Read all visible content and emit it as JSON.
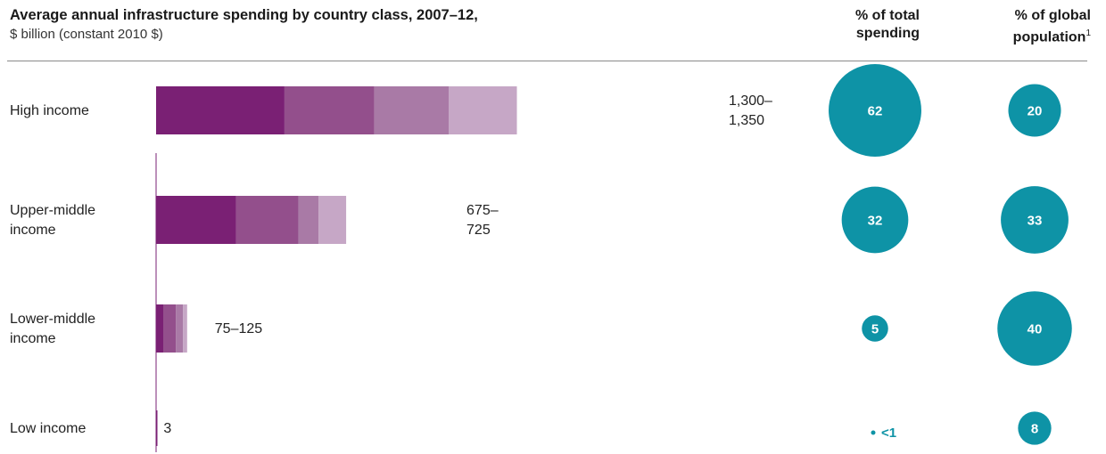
{
  "chart_data": {
    "type": "bar",
    "title": "Average annual infrastructure spending by country class, 2007–12,",
    "subtitle": "$ billion (constant 2010 $)",
    "categories": [
      [
        "High income"
      ],
      [
        "Upper-middle",
        "income"
      ],
      [
        "Lower-middle",
        "income"
      ],
      [
        "Low income"
      ]
    ],
    "segments": [
      [
        306,
        214,
        178,
        162
      ],
      [
        191,
        148,
        48,
        66
      ],
      [
        17,
        30,
        17,
        10
      ],
      [
        3
      ]
    ],
    "segment_colors": [
      "#7a2074",
      "#934f8c",
      "#a97aa6",
      "#c6a7c6"
    ],
    "totals": [
      1350,
      725,
      125,
      3
    ],
    "value_labels": [
      [
        "1,300–",
        "1,350"
      ],
      [
        "675–",
        "725"
      ],
      [
        "75–125"
      ],
      [
        "3"
      ]
    ],
    "spending_share": {
      "header": [
        "% of total",
        "spending"
      ],
      "labels": [
        "62",
        "32",
        "5",
        "<1"
      ],
      "values": [
        62,
        32,
        5,
        0.3
      ]
    },
    "population_share": {
      "header": [
        "% of global",
        "population"
      ],
      "footnote": "1",
      "labels": [
        "20",
        "33",
        "40",
        "8"
      ],
      "values": [
        20,
        33,
        40,
        8
      ]
    },
    "bubble_color": "#0e93a6"
  }
}
